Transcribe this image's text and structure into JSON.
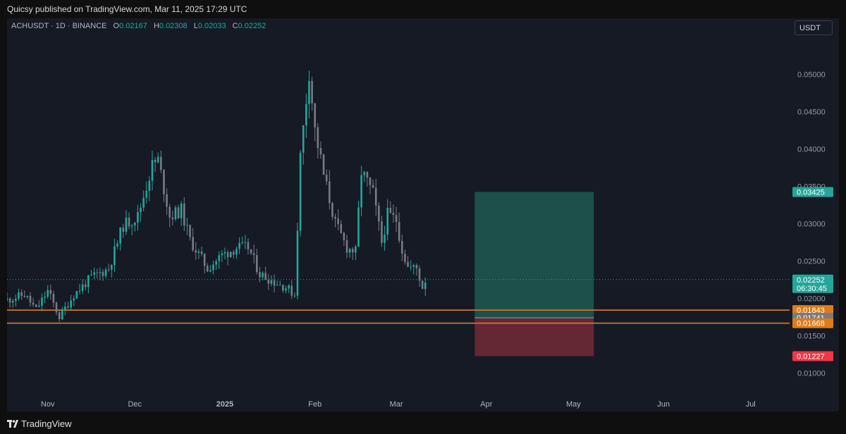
{
  "header": {
    "published": "Quicsy published on TradingView.com, Mar 11, 2025 17:29 UTC"
  },
  "legend": {
    "symbol": "ACHUSDT · 1D · BINANCE",
    "o_label": "O",
    "o_value": "0.02167",
    "h_label": "H",
    "h_value": "0.02308",
    "l_label": "L",
    "l_value": "0.02033",
    "c_label": "C",
    "c_value": "0.02252"
  },
  "currency_button": "USDT",
  "footer": {
    "brand": "TradingView"
  },
  "colors": {
    "up": "#26a69a",
    "down": "#787b86",
    "target_zone": "#1f5a52",
    "stop_zone": "#6b2a36",
    "support_line": "#e07b1a",
    "price_label": "#26a69a",
    "stop_label": "#f23645",
    "entry_label": "#787b86"
  },
  "chart_data": {
    "type": "candlestick",
    "symbol": "ACHUSDT",
    "timeframe": "1D",
    "exchange": "BINANCE",
    "ylim": [
      0.0075,
      0.0575
    ],
    "yticks": [
      "0.01000",
      "0.01500",
      "0.02000",
      "0.02500",
      "0.03000",
      "0.03500",
      "0.04000",
      "0.04500",
      "0.05000"
    ],
    "xticks": [
      "Nov",
      "Dec",
      "2025",
      "Feb",
      "Mar",
      "Apr",
      "May",
      "Jun",
      "Jul"
    ],
    "current_price": {
      "value": "0.02252",
      "countdown": "06:30:45"
    },
    "horizontal_lines": [
      {
        "value": "0.01843",
        "color": "#e07b1a"
      },
      {
        "value": "0.01668",
        "color": "#e07b1a"
      }
    ],
    "long_position": {
      "target": "0.03425",
      "entry": "0.01741",
      "stop": "0.01227",
      "start_date": "2025-03-28",
      "end_date": "2025-05-08"
    },
    "price_path": [
      [
        "2024-10-18",
        0.0198
      ],
      [
        "2024-10-24",
        0.0205
      ],
      [
        "2024-10-28",
        0.0185
      ],
      [
        "2024-11-01",
        0.021
      ],
      [
        "2024-11-05",
        0.0175
      ],
      [
        "2024-11-10",
        0.0205
      ],
      [
        "2024-11-16",
        0.0228
      ],
      [
        "2024-11-22",
        0.024
      ],
      [
        "2024-11-27",
        0.0298
      ],
      [
        "2024-12-02",
        0.031
      ],
      [
        "2024-12-07",
        0.0378
      ],
      [
        "2024-12-09",
        0.0385
      ],
      [
        "2024-12-13",
        0.031
      ],
      [
        "2024-12-17",
        0.0318
      ],
      [
        "2024-12-20",
        0.0278
      ],
      [
        "2024-12-26",
        0.024
      ],
      [
        "2024-12-31",
        0.0258
      ],
      [
        "2025-01-05",
        0.0268
      ],
      [
        "2025-01-09",
        0.0268
      ],
      [
        "2025-01-13",
        0.0233
      ],
      [
        "2025-01-18",
        0.0222
      ],
      [
        "2025-01-22",
        0.0215
      ],
      [
        "2025-01-25",
        0.0205
      ],
      [
        "2025-01-27",
        0.039
      ],
      [
        "2025-01-30",
        0.0505
      ],
      [
        "2025-02-01",
        0.0425
      ],
      [
        "2025-02-04",
        0.0365
      ],
      [
        "2025-02-08",
        0.03
      ],
      [
        "2025-02-12",
        0.0268
      ],
      [
        "2025-02-15",
        0.0262
      ],
      [
        "2025-02-17",
        0.037
      ],
      [
        "2025-02-21",
        0.034
      ],
      [
        "2025-02-24",
        0.0275
      ],
      [
        "2025-02-26",
        0.0312
      ],
      [
        "2025-03-01",
        0.0305
      ],
      [
        "2025-03-03",
        0.0265
      ],
      [
        "2025-03-05",
        0.0242
      ],
      [
        "2025-03-08",
        0.024
      ],
      [
        "2025-03-10",
        0.0215
      ],
      [
        "2025-03-11",
        0.0225
      ]
    ]
  }
}
